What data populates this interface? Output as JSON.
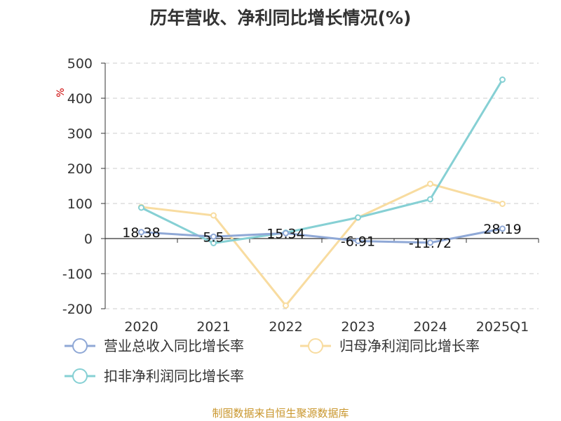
{
  "title": "历年营收、净利同比增长情况(%)",
  "source": "制图数据来自恒生聚源数据库",
  "colors": {
    "revenue": "#8fa8d6",
    "net_profit": "#f8dca0",
    "deducted_profit": "#86d0d4",
    "axis": "#333333",
    "grid": "#cccccc"
  },
  "chart_data": {
    "type": "line",
    "title": "历年营收、净利同比增长情况(%)",
    "ylabel": "%",
    "categories": [
      "2020",
      "2021",
      "2022",
      "2023",
      "2024",
      "2025Q1"
    ],
    "ylim": [
      -200,
      500
    ],
    "yticks": [
      "500",
      "400",
      "300",
      "200",
      "100",
      "0",
      "-100",
      "-200"
    ],
    "grid": "horizontal dashed",
    "legend_position": "bottom",
    "series": [
      {
        "name": "营业总收入同比增长率",
        "color_key": "revenue",
        "values": [
          18.38,
          5.5,
          15.34,
          -6.91,
          -11.72,
          28.19
        ],
        "labels": [
          "18.38",
          "5.5",
          "15.34",
          "-6.91",
          "-11.72",
          "28.19"
        ]
      },
      {
        "name": "归母净利润同比增长率",
        "color_key": "net_profit",
        "values": [
          90,
          66,
          -191,
          60,
          156,
          99
        ]
      },
      {
        "name": "扣非净利润同比增长率",
        "color_key": "deducted_profit",
        "values": [
          88,
          -13,
          17,
          60,
          112,
          453
        ]
      }
    ]
  }
}
